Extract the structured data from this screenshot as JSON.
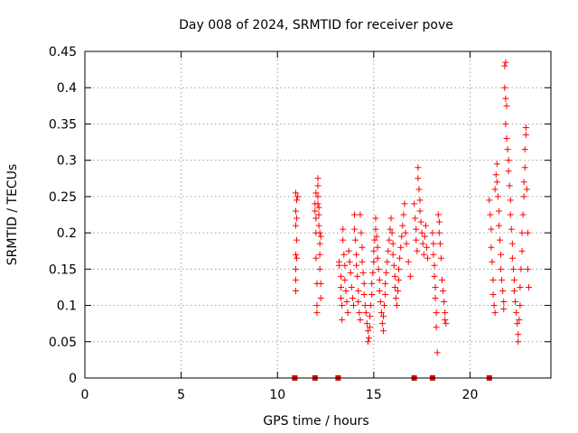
{
  "chart_data": {
    "type": "scatter",
    "title": "Day 008 of 2024, SRMTID for receiver pove",
    "xlabel": "GPS time / hours",
    "ylabel": "SRMTID / TECUs",
    "xlim": [
      0,
      24.2
    ],
    "ylim": [
      0,
      0.45
    ],
    "xticks": [
      0,
      5,
      10,
      15,
      20
    ],
    "xtick_labels": [
      "0",
      "5",
      "10",
      "15",
      "20"
    ],
    "yticks": [
      0,
      0.05,
      0.1,
      0.15,
      0.2,
      0.25,
      0.3,
      0.35,
      0.4,
      0.45
    ],
    "ytick_labels": [
      "0",
      "0.05",
      "0.1",
      "0.15",
      "0.2",
      "0.25",
      "0.3",
      "0.35",
      "0.4",
      "0.45"
    ],
    "grid": true,
    "legend": "none",
    "color": "#ff0000",
    "marker_color": "#dd0000",
    "zero_markers_x": [
      10.9,
      11.95,
      13.15,
      17.1,
      18.05,
      21.0
    ],
    "series": [
      {
        "name": "SRMTID",
        "points": [
          [
            10.95,
            0.255
          ],
          [
            10.95,
            0.23
          ],
          [
            10.95,
            0.21
          ],
          [
            10.95,
            0.17
          ],
          [
            10.95,
            0.15
          ],
          [
            10.95,
            0.135
          ],
          [
            10.95,
            0.12
          ],
          [
            11.0,
            0.22
          ],
          [
            11.0,
            0.19
          ],
          [
            11.0,
            0.165
          ],
          [
            11.05,
            0.25
          ],
          [
            11.0,
            0.245
          ],
          [
            11.95,
            0.24
          ],
          [
            11.95,
            0.23
          ],
          [
            12.0,
            0.255
          ],
          [
            12.0,
            0.22
          ],
          [
            12.0,
            0.2
          ],
          [
            12.0,
            0.165
          ],
          [
            12.05,
            0.13
          ],
          [
            12.05,
            0.1
          ],
          [
            12.05,
            0.09
          ],
          [
            12.1,
            0.265
          ],
          [
            12.1,
            0.275
          ],
          [
            12.1,
            0.25
          ],
          [
            12.1,
            0.24
          ],
          [
            12.15,
            0.235
          ],
          [
            12.15,
            0.225
          ],
          [
            12.15,
            0.21
          ],
          [
            12.2,
            0.2
          ],
          [
            12.2,
            0.185
          ],
          [
            12.2,
            0.17
          ],
          [
            12.2,
            0.15
          ],
          [
            12.25,
            0.13
          ],
          [
            12.25,
            0.11
          ],
          [
            12.25,
            0.195
          ],
          [
            13.2,
            0.16
          ],
          [
            13.2,
            0.155
          ],
          [
            13.3,
            0.14
          ],
          [
            13.3,
            0.125
          ],
          [
            13.3,
            0.11
          ],
          [
            13.35,
            0.1
          ],
          [
            13.35,
            0.08
          ],
          [
            13.4,
            0.205
          ],
          [
            13.4,
            0.19
          ],
          [
            13.45,
            0.17
          ],
          [
            13.5,
            0.155
          ],
          [
            13.5,
            0.135
          ],
          [
            13.55,
            0.12
          ],
          [
            13.6,
            0.105
          ],
          [
            13.65,
            0.09
          ],
          [
            13.7,
            0.175
          ],
          [
            13.75,
            0.16
          ],
          [
            13.8,
            0.145
          ],
          [
            13.85,
            0.125
          ],
          [
            13.9,
            0.11
          ],
          [
            13.95,
            0.1
          ],
          [
            14.0,
            0.225
          ],
          [
            14.0,
            0.205
          ],
          [
            14.05,
            0.19
          ],
          [
            14.1,
            0.17
          ],
          [
            14.1,
            0.155
          ],
          [
            14.15,
            0.14
          ],
          [
            14.2,
            0.12
          ],
          [
            14.2,
            0.105
          ],
          [
            14.25,
            0.09
          ],
          [
            14.3,
            0.08
          ],
          [
            14.3,
            0.225
          ],
          [
            14.35,
            0.2
          ],
          [
            14.4,
            0.18
          ],
          [
            14.4,
            0.16
          ],
          [
            14.45,
            0.145
          ],
          [
            14.5,
            0.13
          ],
          [
            14.5,
            0.115
          ],
          [
            14.55,
            0.1
          ],
          [
            14.6,
            0.09
          ],
          [
            14.65,
            0.075
          ],
          [
            14.7,
            0.065
          ],
          [
            14.7,
            0.05
          ],
          [
            14.75,
            0.055
          ],
          [
            14.8,
            0.07
          ],
          [
            14.8,
            0.085
          ],
          [
            14.85,
            0.1
          ],
          [
            14.9,
            0.115
          ],
          [
            14.9,
            0.13
          ],
          [
            14.95,
            0.145
          ],
          [
            15.0,
            0.16
          ],
          [
            15.0,
            0.175
          ],
          [
            15.05,
            0.19
          ],
          [
            15.1,
            0.205
          ],
          [
            15.1,
            0.22
          ],
          [
            15.15,
            0.195
          ],
          [
            15.2,
            0.18
          ],
          [
            15.2,
            0.165
          ],
          [
            15.25,
            0.15
          ],
          [
            15.3,
            0.135
          ],
          [
            15.3,
            0.12
          ],
          [
            15.35,
            0.105
          ],
          [
            15.4,
            0.09
          ],
          [
            15.45,
            0.075
          ],
          [
            15.5,
            0.065
          ],
          [
            15.5,
            0.085
          ],
          [
            15.55,
            0.1
          ],
          [
            15.6,
            0.115
          ],
          [
            15.6,
            0.13
          ],
          [
            15.65,
            0.145
          ],
          [
            15.7,
            0.16
          ],
          [
            15.75,
            0.175
          ],
          [
            15.8,
            0.19
          ],
          [
            15.85,
            0.205
          ],
          [
            15.9,
            0.22
          ],
          [
            15.95,
            0.2
          ],
          [
            16.0,
            0.185
          ],
          [
            16.0,
            0.17
          ],
          [
            16.05,
            0.155
          ],
          [
            16.1,
            0.14
          ],
          [
            16.1,
            0.125
          ],
          [
            16.15,
            0.11
          ],
          [
            16.2,
            0.1
          ],
          [
            16.25,
            0.12
          ],
          [
            16.3,
            0.135
          ],
          [
            16.3,
            0.15
          ],
          [
            16.35,
            0.165
          ],
          [
            16.4,
            0.18
          ],
          [
            16.45,
            0.195
          ],
          [
            16.5,
            0.21
          ],
          [
            16.55,
            0.225
          ],
          [
            16.6,
            0.24
          ],
          [
            16.65,
            0.2
          ],
          [
            16.7,
            0.185
          ],
          [
            16.8,
            0.16
          ],
          [
            16.9,
            0.14
          ],
          [
            17.1,
            0.24
          ],
          [
            17.15,
            0.22
          ],
          [
            17.2,
            0.205
          ],
          [
            17.2,
            0.19
          ],
          [
            17.25,
            0.175
          ],
          [
            17.3,
            0.29
          ],
          [
            17.3,
            0.275
          ],
          [
            17.35,
            0.26
          ],
          [
            17.4,
            0.245
          ],
          [
            17.4,
            0.23
          ],
          [
            17.45,
            0.215
          ],
          [
            17.5,
            0.2
          ],
          [
            17.55,
            0.185
          ],
          [
            17.6,
            0.17
          ],
          [
            17.65,
            0.195
          ],
          [
            17.7,
            0.21
          ],
          [
            17.75,
            0.18
          ],
          [
            17.8,
            0.165
          ],
          [
            18.05,
            0.2
          ],
          [
            18.1,
            0.185
          ],
          [
            18.1,
            0.17
          ],
          [
            18.15,
            0.155
          ],
          [
            18.15,
            0.14
          ],
          [
            18.2,
            0.125
          ],
          [
            18.2,
            0.11
          ],
          [
            18.25,
            0.09
          ],
          [
            18.25,
            0.07
          ],
          [
            18.3,
            0.035
          ],
          [
            18.35,
            0.225
          ],
          [
            18.4,
            0.215
          ],
          [
            18.4,
            0.2
          ],
          [
            18.45,
            0.185
          ],
          [
            18.5,
            0.165
          ],
          [
            18.55,
            0.135
          ],
          [
            18.6,
            0.12
          ],
          [
            18.65,
            0.105
          ],
          [
            18.7,
            0.09
          ],
          [
            18.7,
            0.08
          ],
          [
            18.75,
            0.075
          ],
          [
            21.0,
            0.245
          ],
          [
            21.05,
            0.225
          ],
          [
            21.1,
            0.205
          ],
          [
            21.1,
            0.18
          ],
          [
            21.15,
            0.16
          ],
          [
            21.2,
            0.135
          ],
          [
            21.2,
            0.115
          ],
          [
            21.25,
            0.1
          ],
          [
            21.3,
            0.09
          ],
          [
            21.3,
            0.26
          ],
          [
            21.35,
            0.28
          ],
          [
            21.4,
            0.295
          ],
          [
            21.4,
            0.27
          ],
          [
            21.45,
            0.25
          ],
          [
            21.5,
            0.23
          ],
          [
            21.5,
            0.21
          ],
          [
            21.55,
            0.19
          ],
          [
            21.6,
            0.17
          ],
          [
            21.6,
            0.15
          ],
          [
            21.65,
            0.135
          ],
          [
            21.7,
            0.12
          ],
          [
            21.75,
            0.105
          ],
          [
            21.75,
            0.095
          ],
          [
            21.8,
            0.43
          ],
          [
            21.85,
            0.435
          ],
          [
            21.8,
            0.4
          ],
          [
            21.85,
            0.385
          ],
          [
            21.9,
            0.375
          ],
          [
            21.85,
            0.35
          ],
          [
            21.9,
            0.33
          ],
          [
            21.95,
            0.315
          ],
          [
            22.0,
            0.3
          ],
          [
            22.0,
            0.285
          ],
          [
            22.05,
            0.265
          ],
          [
            22.1,
            0.245
          ],
          [
            22.1,
            0.225
          ],
          [
            22.15,
            0.205
          ],
          [
            22.2,
            0.185
          ],
          [
            22.2,
            0.165
          ],
          [
            22.25,
            0.15
          ],
          [
            22.3,
            0.135
          ],
          [
            22.3,
            0.12
          ],
          [
            22.35,
            0.105
          ],
          [
            22.4,
            0.09
          ],
          [
            22.45,
            0.075
          ],
          [
            22.5,
            0.06
          ],
          [
            22.5,
            0.05
          ],
          [
            22.55,
            0.08
          ],
          [
            22.6,
            0.1
          ],
          [
            22.6,
            0.125
          ],
          [
            22.65,
            0.15
          ],
          [
            22.7,
            0.175
          ],
          [
            22.7,
            0.2
          ],
          [
            22.75,
            0.225
          ],
          [
            22.8,
            0.25
          ],
          [
            22.8,
            0.27
          ],
          [
            22.85,
            0.29
          ],
          [
            22.85,
            0.315
          ],
          [
            22.9,
            0.335
          ],
          [
            22.9,
            0.345
          ],
          [
            22.95,
            0.26
          ],
          [
            23.0,
            0.2
          ],
          [
            23.0,
            0.15
          ],
          [
            23.05,
            0.125
          ]
        ]
      }
    ]
  }
}
